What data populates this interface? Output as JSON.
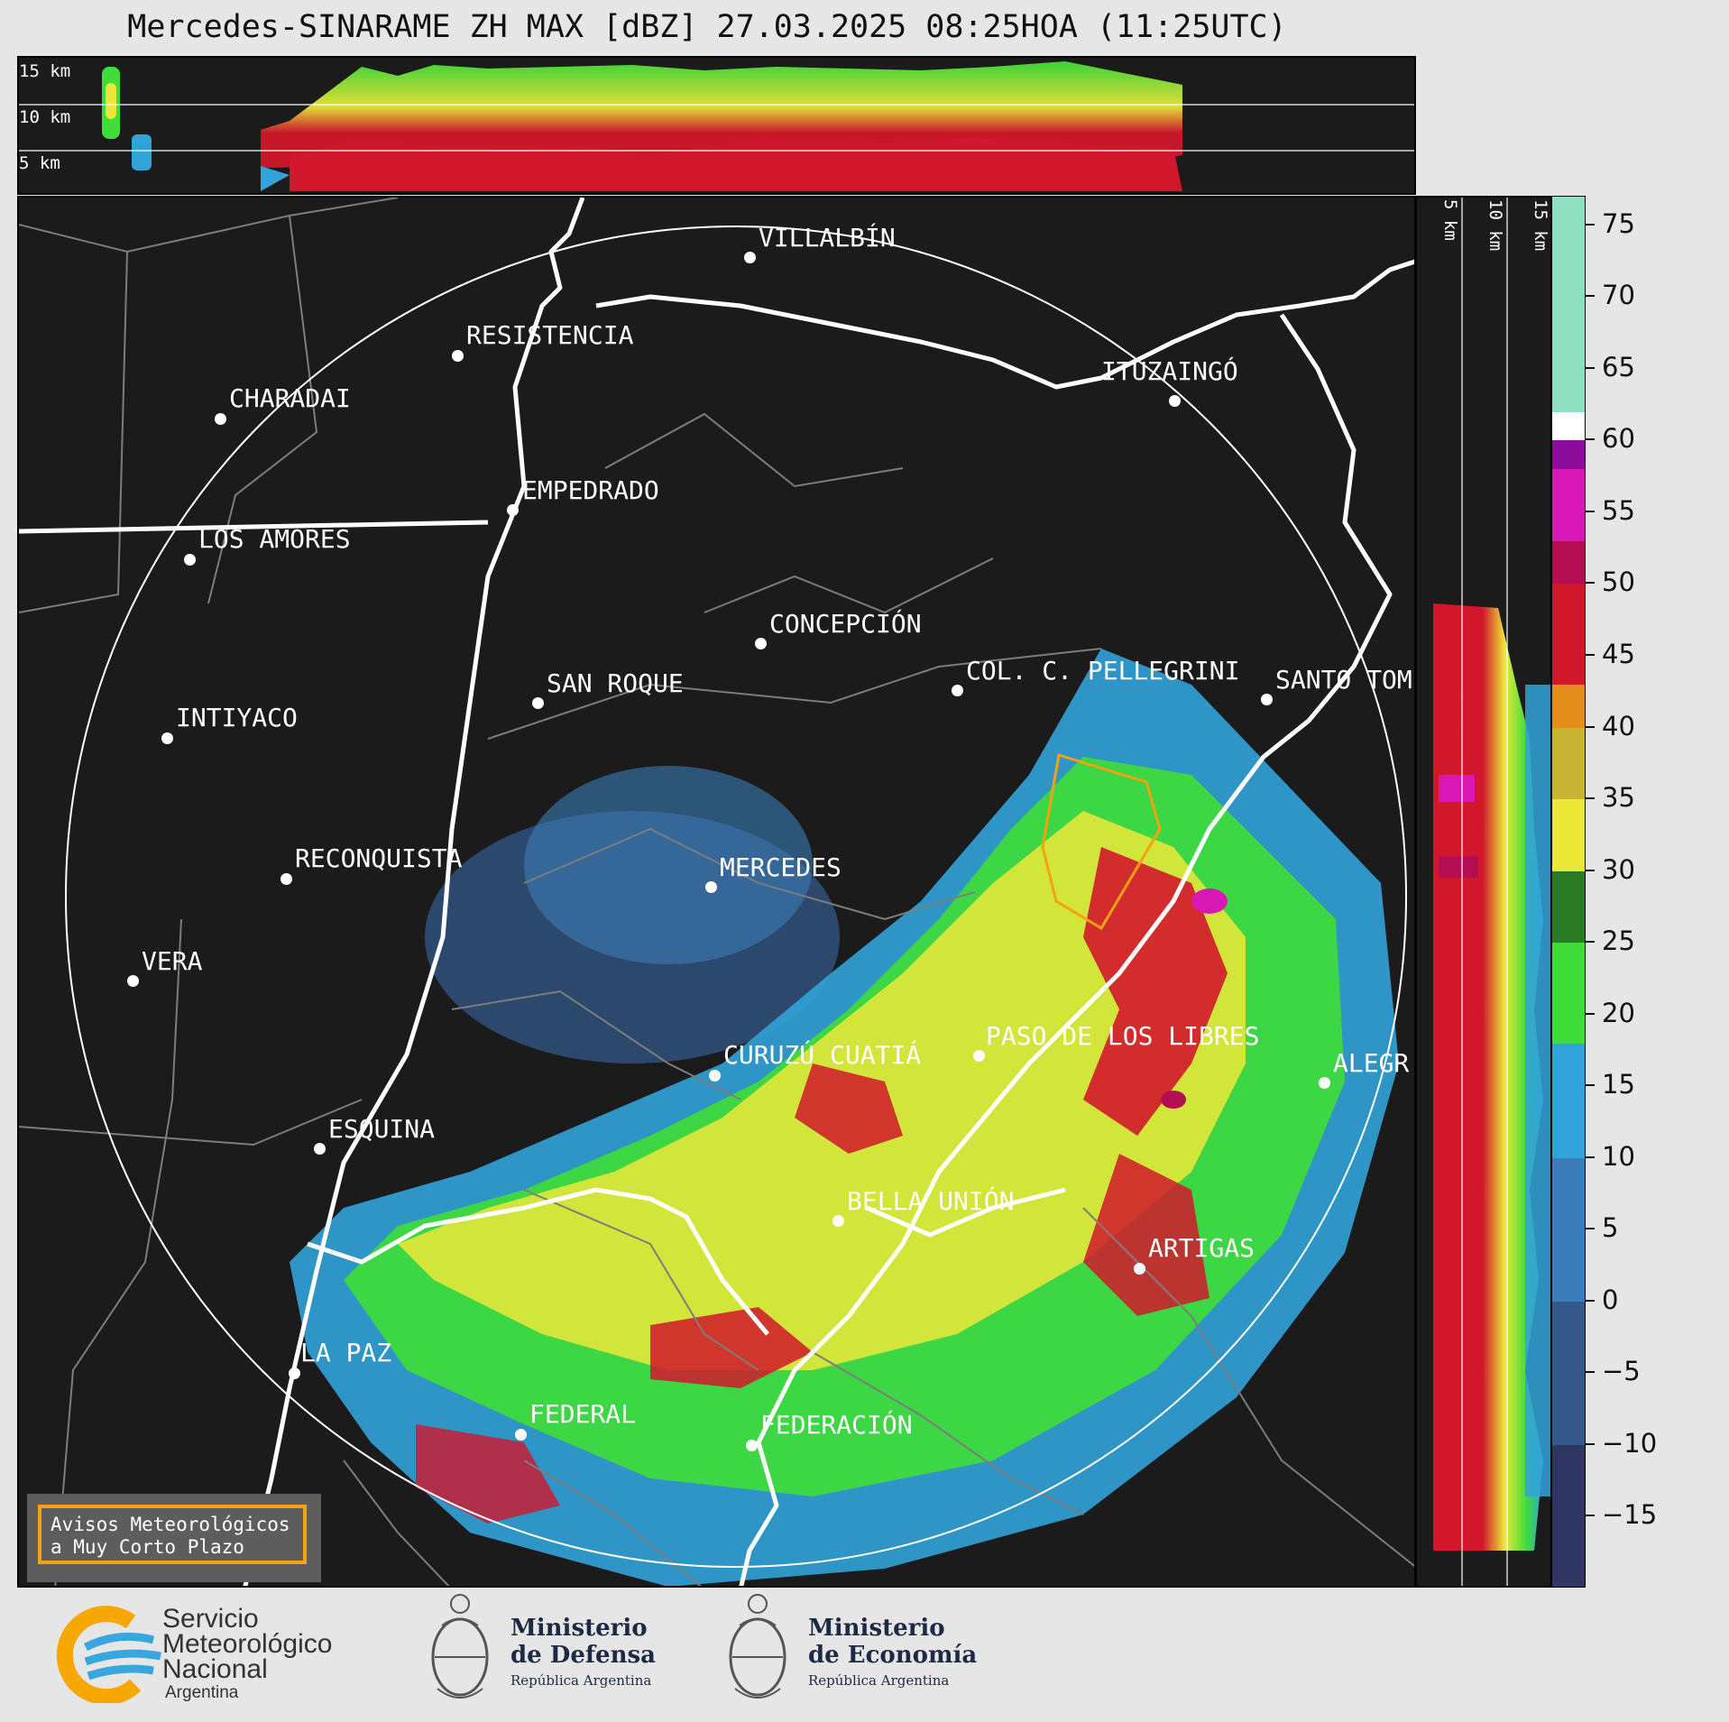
{
  "title": "Mercedes-SINARAME ZH MAX [dBZ] 27.03.2025 08:25HOA (11:25UTC)",
  "height_labels_top": [
    "15 km",
    "10 km",
    "5 km"
  ],
  "height_labels_side": [
    "5 km",
    "10 km",
    "15 km"
  ],
  "cities": [
    {
      "name": "VILLALBÍN"
    },
    {
      "name": "RESISTENCIA"
    },
    {
      "name": "CHARADAI"
    },
    {
      "name": "ITUZAINGÓ"
    },
    {
      "name": "EMPEDRADO"
    },
    {
      "name": "LOS AMORES"
    },
    {
      "name": "CONCEPCIÓN"
    },
    {
      "name": "COL. C. PELLEGRINI"
    },
    {
      "name": "SANTO TOM"
    },
    {
      "name": "SAN ROQUE"
    },
    {
      "name": "INTIYACO"
    },
    {
      "name": "MERCEDES"
    },
    {
      "name": "RECONQUISTA"
    },
    {
      "name": "VERA"
    },
    {
      "name": "PASO DE LOS LIBRES"
    },
    {
      "name": "CURUZÚ CUATIÁ"
    },
    {
      "name": "ALEGR"
    },
    {
      "name": "ESQUINA"
    },
    {
      "name": "BELLA UNIÓN"
    },
    {
      "name": "ARTIGAS"
    },
    {
      "name": "LA PAZ"
    },
    {
      "name": "FEDERAL"
    },
    {
      "name": "FEDERACIÓN"
    }
  ],
  "colorbar": {
    "unit": "dBZ",
    "min": -20,
    "max": 77,
    "ticks": [
      "75",
      "70",
      "65",
      "60",
      "55",
      "50",
      "45",
      "40",
      "35",
      "30",
      "25",
      "20",
      "15",
      "10",
      "5",
      "0",
      "−5",
      "−10",
      "−15"
    ],
    "bands": [
      {
        "from": -20,
        "to": -10,
        "color": "#2f3661"
      },
      {
        "from": -10,
        "to": 0,
        "color": "#345889"
      },
      {
        "from": 0,
        "to": 10,
        "color": "#3b7db8"
      },
      {
        "from": 10,
        "to": 18,
        "color": "#31a3d9"
      },
      {
        "from": 18,
        "to": 25,
        "color": "#3fdc3a"
      },
      {
        "from": 25,
        "to": 30,
        "color": "#2a7a24"
      },
      {
        "from": 30,
        "to": 35,
        "color": "#ece838"
      },
      {
        "from": 35,
        "to": 40,
        "color": "#c8b534"
      },
      {
        "from": 40,
        "to": 43,
        "color": "#e28d1c"
      },
      {
        "from": 43,
        "to": 50,
        "color": "#d1172c"
      },
      {
        "from": 50,
        "to": 53,
        "color": "#b40e52"
      },
      {
        "from": 53,
        "to": 58,
        "color": "#d818b4"
      },
      {
        "from": 58,
        "to": 60,
        "color": "#8c0d9c"
      },
      {
        "from": 60,
        "to": 62,
        "color": "#ffffff"
      },
      {
        "from": 62,
        "to": 77,
        "color": "#8ee0c0"
      }
    ]
  },
  "notice": {
    "line1": "Avisos Meteorológicos",
    "line2": "a Muy Corto Plazo"
  },
  "logos": {
    "smn_line1": "Servicio",
    "smn_line2": "Meteorológico",
    "smn_line3": "Nacional",
    "smn_line4": "Argentina",
    "defensa_line1": "Ministerio",
    "defensa_line2": "de Defensa",
    "defensa_sub": "República Argentina",
    "economia_line1": "Ministerio",
    "economia_line2": "de Economía",
    "economia_sub": "República Argentina"
  },
  "colors": {
    "background": "#e6e6e6",
    "panel": "#1b1b1b",
    "notice_border": "#f4a20f",
    "smn_yellow": "#f6a800",
    "smn_blue": "#3aa6de"
  }
}
